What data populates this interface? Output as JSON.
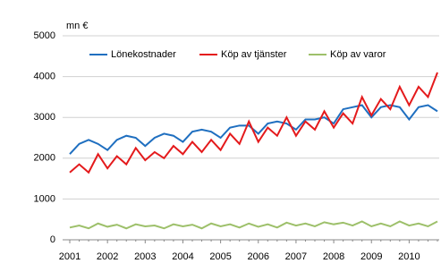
{
  "chart_data": {
    "type": "line",
    "y_label": "mn €",
    "categories": [
      "2001",
      null,
      null,
      null,
      "2002",
      null,
      null,
      null,
      "2003",
      null,
      null,
      null,
      "2004",
      null,
      null,
      null,
      "2005",
      null,
      null,
      null,
      "2006",
      null,
      null,
      null,
      "2007",
      null,
      null,
      null,
      "2008",
      null,
      null,
      null,
      "2009",
      null,
      null,
      null,
      "2010",
      null,
      null,
      null
    ],
    "series": [
      {
        "name": "Lönekostnader",
        "color": "#1f6fc0",
        "values": [
          2100,
          2350,
          2450,
          2350,
          2200,
          2450,
          2550,
          2500,
          2300,
          2500,
          2600,
          2550,
          2400,
          2650,
          2700,
          2650,
          2500,
          2750,
          2800,
          2800,
          2600,
          2850,
          2900,
          2850,
          2700,
          2950,
          2950,
          3000,
          2850,
          3200,
          3250,
          3300,
          3000,
          3250,
          3300,
          3250,
          2950,
          3250,
          3300,
          3150
        ]
      },
      {
        "name": "Köp av tjänster",
        "color": "#e41a1c",
        "values": [
          1650,
          1850,
          1650,
          2100,
          1750,
          2050,
          1850,
          2250,
          1950,
          2150,
          2000,
          2300,
          2100,
          2400,
          2150,
          2450,
          2200,
          2600,
          2350,
          2900,
          2400,
          2750,
          2550,
          3000,
          2550,
          2900,
          2700,
          3150,
          2750,
          3100,
          2850,
          3500,
          3050,
          3450,
          3200,
          3750,
          3300,
          3750,
          3500,
          4100
        ]
      },
      {
        "name": "Köp av varor",
        "color": "#9dc06a",
        "values": [
          300,
          350,
          280,
          400,
          320,
          370,
          280,
          380,
          330,
          350,
          280,
          380,
          330,
          370,
          280,
          400,
          330,
          380,
          300,
          400,
          320,
          380,
          300,
          420,
          350,
          400,
          330,
          430,
          380,
          420,
          350,
          450,
          330,
          400,
          330,
          450,
          350,
          400,
          330,
          450
        ]
      }
    ],
    "ylim": [
      0,
      5000
    ],
    "yticks": [
      0,
      1000,
      2000,
      3000,
      4000,
      5000
    ],
    "grid": true,
    "legend": "top"
  }
}
